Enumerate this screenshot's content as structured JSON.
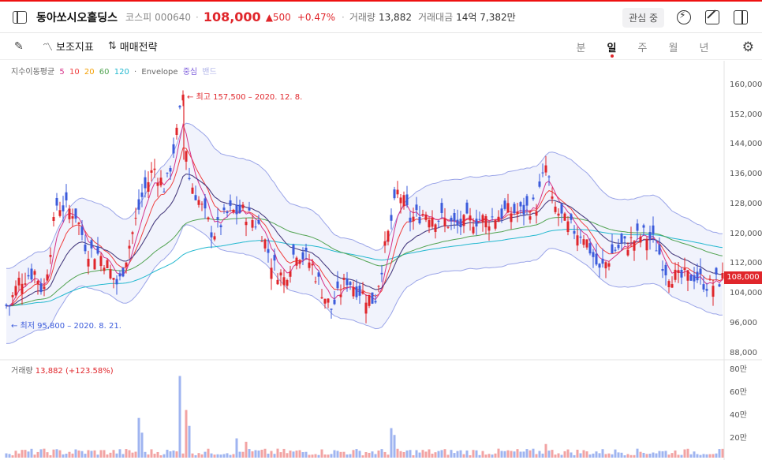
{
  "header": {
    "stock_name": "동아쏘시오홀딩스",
    "market": "코스피",
    "code": "000640",
    "price": "108,000",
    "change": "▲500",
    "change_pct": "+0.47%",
    "volume_label": "거래량",
    "volume": "13,882",
    "amount_label": "거래대금",
    "amount": "14억 7,382만",
    "favorite_label": "관심 중"
  },
  "toolbar": {
    "indicator_label": "보조지표",
    "strategy_label": "매매전략",
    "periods": [
      "분",
      "일",
      "주",
      "월",
      "년"
    ],
    "active_period": "일"
  },
  "legend": {
    "title": "지수이동평균",
    "ma": [
      "5",
      "10",
      "20",
      "60",
      "120"
    ],
    "ma_colors": [
      "#d6338a",
      "#f03e3e",
      "#f59f00",
      "#51a351",
      "#22b8cf"
    ],
    "envelope": "Envelope",
    "envelope_center": "중심",
    "envelope_band": "밴드"
  },
  "annotations": {
    "high": "← 최고 157,500 – 2020. 12. 8.",
    "low": "← 최저 95,800 – 2020. 8. 21."
  },
  "price_axis": [
    "160,000",
    "152,000",
    "144,000",
    "136,000",
    "128,000",
    "120,000",
    "112,000",
    "104,000",
    "96,000",
    "88,000"
  ],
  "current_price_tag": "108,000",
  "volume_panel": {
    "label": "거래량",
    "value": "13,882 (+123.58%)",
    "axis": [
      "80만",
      "60만",
      "40만",
      "20만"
    ]
  },
  "colors": {
    "up": "#e0262b",
    "down": "#3b5bdb",
    "band": "#9aa4e8"
  },
  "chart_data": {
    "type": "candlestick",
    "price_range": [
      88000,
      160000
    ],
    "volume_range": [
      0,
      800000
    ],
    "key_points": [
      [
        0,
        104000
      ],
      [
        10,
        100000
      ],
      [
        25,
        108000
      ],
      [
        45,
        110000
      ],
      [
        55,
        104000
      ],
      [
        72,
        128000
      ],
      [
        95,
        126000
      ],
      [
        110,
        116000
      ],
      [
        130,
        114000
      ],
      [
        150,
        106000
      ],
      [
        165,
        118000
      ],
      [
        180,
        130000
      ],
      [
        195,
        138000
      ],
      [
        210,
        132000
      ],
      [
        225,
        148000
      ],
      [
        232,
        157500
      ],
      [
        238,
        136000
      ],
      [
        250,
        130000
      ],
      [
        270,
        120000
      ],
      [
        290,
        126000
      ],
      [
        310,
        126000
      ],
      [
        330,
        122000
      ],
      [
        345,
        112000
      ],
      [
        360,
        108000
      ],
      [
        375,
        116000
      ],
      [
        395,
        112000
      ],
      [
        410,
        104000
      ],
      [
        420,
        100000
      ],
      [
        440,
        108000
      ],
      [
        460,
        104000
      ],
      [
        475,
        102000
      ],
      [
        490,
        118000
      ],
      [
        505,
        132000
      ],
      [
        520,
        124000
      ],
      [
        540,
        126000
      ],
      [
        560,
        124000
      ],
      [
        580,
        122000
      ],
      [
        600,
        124000
      ],
      [
        620,
        124000
      ],
      [
        640,
        126000
      ],
      [
        660,
        126000
      ],
      [
        680,
        128000
      ],
      [
        693,
        139000
      ],
      [
        700,
        128000
      ],
      [
        720,
        122000
      ],
      [
        740,
        120000
      ],
      [
        760,
        110000
      ],
      [
        780,
        116000
      ],
      [
        800,
        118000
      ],
      [
        815,
        120000
      ],
      [
        830,
        118000
      ],
      [
        845,
        110000
      ],
      [
        860,
        108000
      ],
      [
        880,
        109000
      ],
      [
        900,
        106000
      ],
      [
        914,
        108000
      ]
    ]
  }
}
